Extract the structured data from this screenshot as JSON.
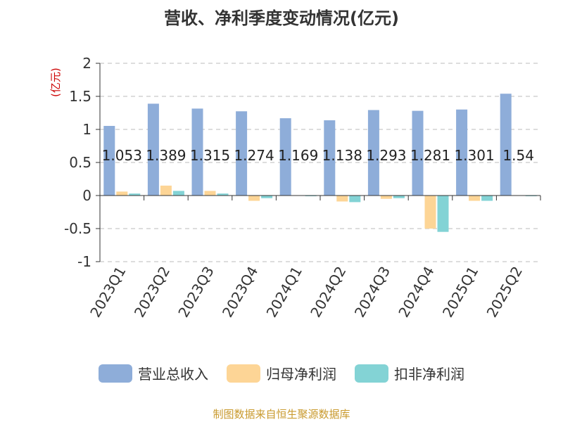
{
  "title": "营收、净利季度变动情况(亿元)",
  "unit_label": "(亿元)",
  "footer": "制图数据来自恒生聚源数据库",
  "colors": {
    "revenue": "#8eadd9",
    "net_profit": "#fdd596",
    "deducted_profit": "#83d3d5",
    "unit_label": "#cc0000",
    "footer": "#c99a2e"
  },
  "legend": [
    {
      "name": "营业总收入",
      "color": "#8eadd9"
    },
    {
      "name": "归母净利润",
      "color": "#fdd596"
    },
    {
      "name": "扣非净利润",
      "color": "#83d3d5"
    }
  ],
  "chart_data": {
    "type": "bar",
    "title": "营收、净利季度变动情况(亿元)",
    "ylabel": "(亿元)",
    "ylim": [
      -1,
      2
    ],
    "yticks": [
      -1,
      -0.5,
      0,
      0.5,
      1,
      1.5,
      2
    ],
    "ytick_labels": [
      "-1",
      "-0.5",
      "0",
      "0.5",
      "1",
      "1.5",
      "2"
    ],
    "grid": true,
    "legend_position": "bottom",
    "categories": [
      "2023Q1",
      "2023Q2",
      "2023Q3",
      "2023Q4",
      "2024Q1",
      "2024Q2",
      "2024Q3",
      "2024Q4",
      "2025Q1",
      "2025Q2"
    ],
    "series": [
      {
        "name": "营业总收入",
        "values": [
          1.053,
          1.389,
          1.315,
          1.274,
          1.169,
          1.138,
          1.293,
          1.281,
          1.301,
          1.54
        ],
        "labels": [
          "1.053",
          "1.389",
          "1.315",
          "1.274",
          "1.169",
          "1.138",
          "1.293",
          "1.281",
          "1.301",
          "1.54"
        ]
      },
      {
        "name": "归母净利润",
        "values": [
          0.06,
          0.15,
          0.07,
          -0.08,
          0.0,
          -0.09,
          -0.05,
          -0.5,
          -0.08,
          0.0
        ]
      },
      {
        "name": "扣非净利润",
        "values": [
          0.03,
          0.07,
          0.03,
          -0.04,
          -0.01,
          -0.1,
          -0.04,
          -0.55,
          -0.08,
          -0.01
        ]
      }
    ]
  }
}
